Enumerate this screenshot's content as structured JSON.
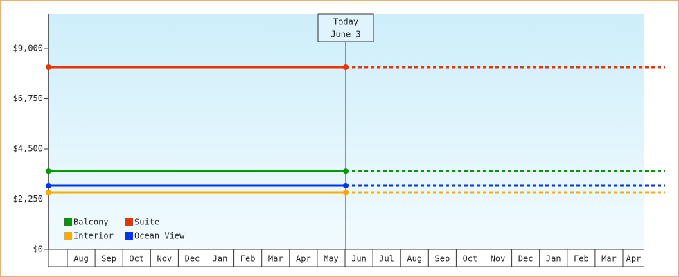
{
  "chart_data": {
    "type": "line",
    "categories": [
      null,
      "Aug",
      "Sep",
      "Oct",
      "Nov",
      "Dec",
      "Jan",
      "Feb",
      "Mar",
      "Apr",
      "May",
      "Jun",
      "Jul",
      "Aug",
      "Sep",
      "Oct",
      "Nov",
      "Dec",
      "Jan",
      "Feb",
      "Mar",
      "Apr"
    ],
    "series": [
      {
        "name": "Balcony",
        "color": "#009900",
        "value": 3500
      },
      {
        "name": "Suite",
        "color": "#ee3300",
        "value": 8160
      },
      {
        "name": "Interior",
        "color": "#ffaa00",
        "value": 2545
      },
      {
        "name": "Ocean View",
        "color": "#0033ff",
        "value": 2855
      }
    ],
    "annotation": {
      "title": "Today",
      "date": "June 3"
    },
    "ylim": [
      0,
      10550
    ],
    "yticks": [
      {
        "value": 0,
        "label": "$0"
      },
      {
        "value": 2250,
        "label": "$2,250"
      },
      {
        "value": 4500,
        "label": "$4,500"
      },
      {
        "value": 6750,
        "label": "$6,750"
      },
      {
        "value": 9000,
        "label": "$9,000"
      }
    ]
  }
}
